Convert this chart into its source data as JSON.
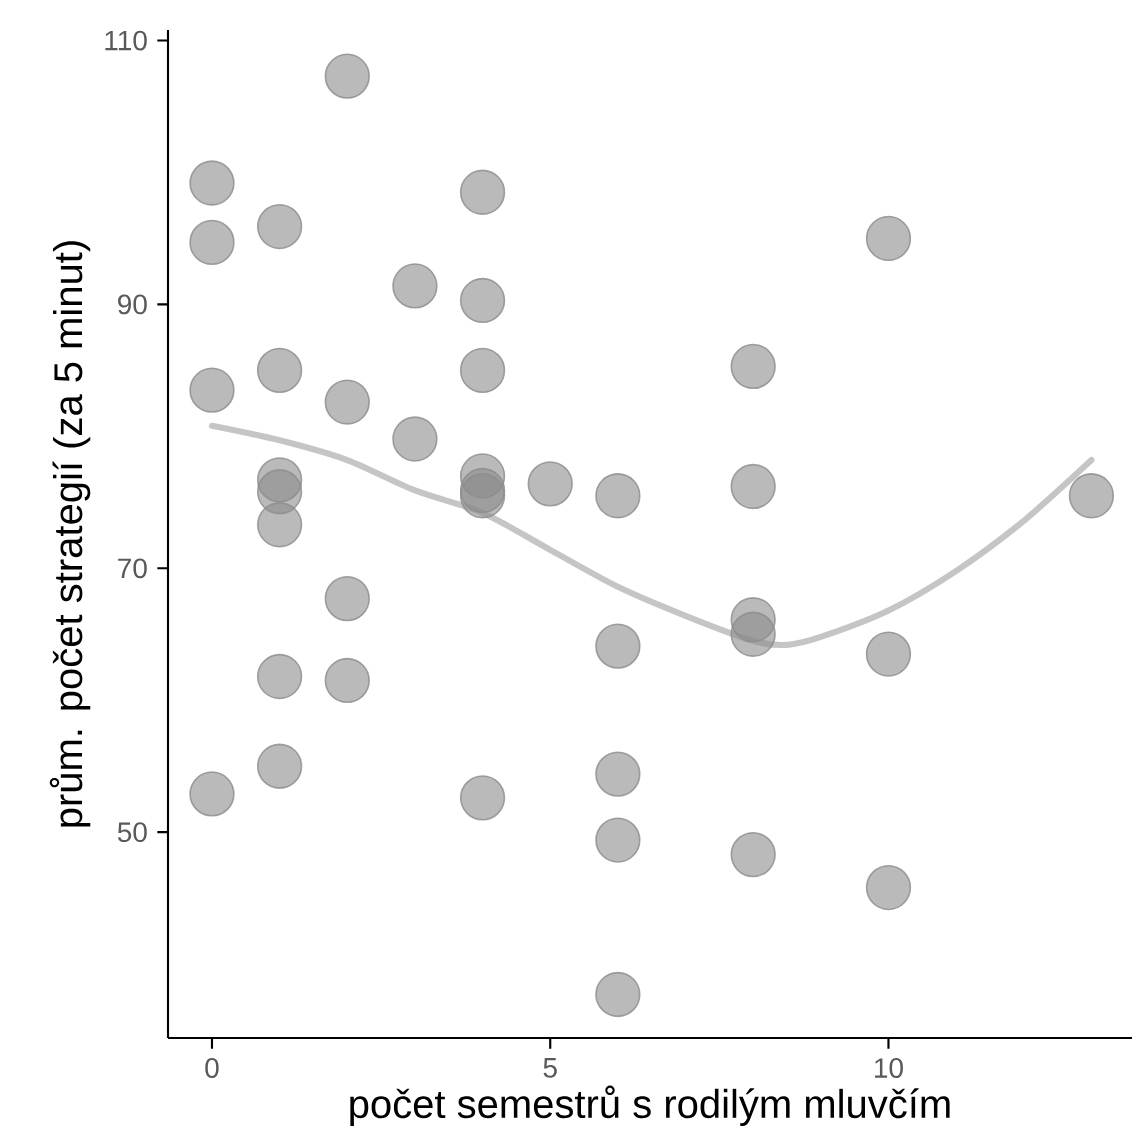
{
  "chart_data": {
    "type": "scatter",
    "xlabel": "počet semestrů s rodilým mluvčím",
    "ylabel": "prům. počet strategií (za 5 minut)",
    "xlim": [
      -0.65,
      13.6
    ],
    "ylim": [
      34.4,
      110.8
    ],
    "xticks": [
      0,
      5,
      10
    ],
    "yticks": [
      50,
      70,
      90,
      110
    ],
    "series": [
      {
        "marker": "circle",
        "color": "#8c8c8c",
        "x": [
          0,
          0,
          0,
          0,
          1,
          1,
          1,
          1,
          1,
          1,
          1,
          2,
          2,
          2,
          2,
          3,
          3,
          4,
          4,
          4,
          4,
          4,
          4,
          4,
          5,
          6,
          6,
          6,
          6,
          6,
          8,
          8,
          8,
          8,
          8,
          10,
          10,
          10,
          13
        ],
        "values": [
          99.2,
          94.7,
          83.5,
          52.9,
          95.9,
          85.0,
          76.7,
          75.8,
          73.3,
          61.8,
          55.0,
          107.3,
          82.6,
          67.7,
          61.5,
          91.4,
          79.8,
          98.5,
          90.3,
          85.0,
          77.0,
          75.9,
          75.5,
          52.6,
          76.4,
          75.5,
          64.1,
          54.4,
          49.4,
          37.7,
          85.3,
          76.2,
          66.1,
          65.0,
          48.3,
          95.0,
          63.5,
          45.8,
          75.5
        ]
      },
      {
        "type": "line",
        "marker": "none",
        "color": "#bfbfbf",
        "x": [
          0,
          1,
          2,
          3,
          4,
          5,
          6,
          7,
          8,
          8.5,
          9,
          10,
          11,
          12,
          13
        ],
        "values": [
          80.8,
          79.7,
          78.2,
          75.9,
          74.2,
          71.4,
          68.6,
          66.4,
          64.5,
          64.2,
          64.8,
          66.8,
          69.8,
          73.6,
          78.2
        ]
      }
    ]
  }
}
